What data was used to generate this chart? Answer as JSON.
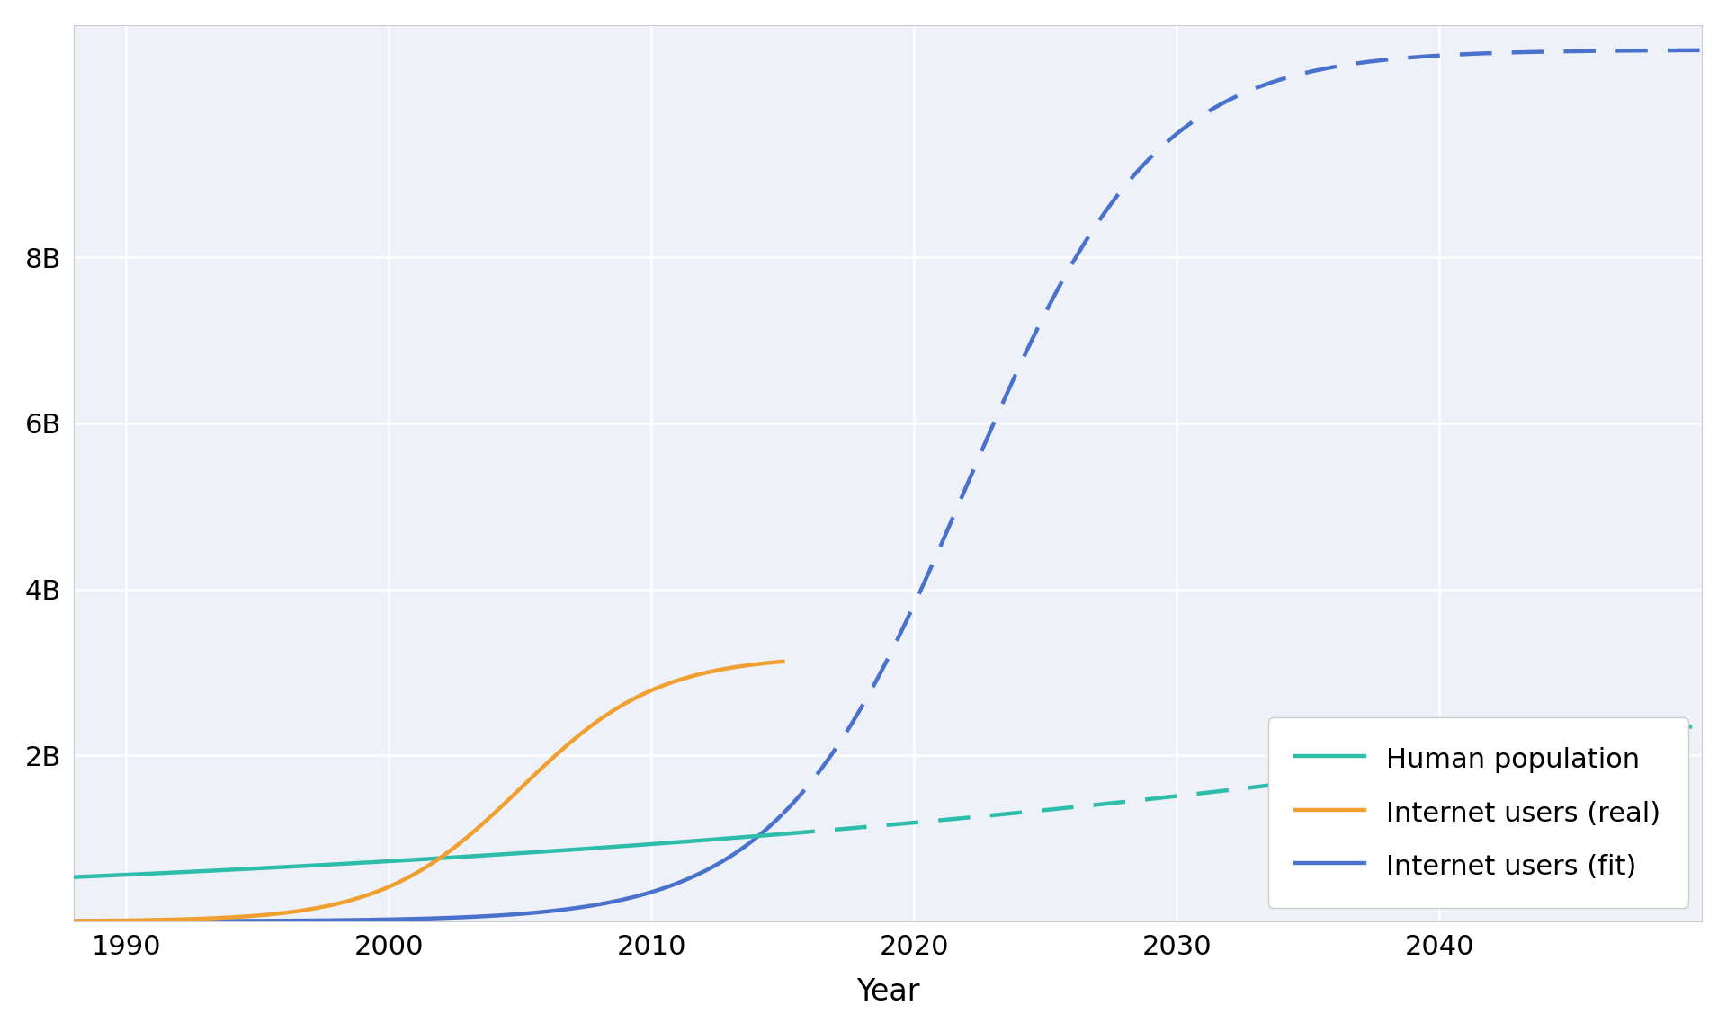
{
  "title": "",
  "xlabel": "Year",
  "ylabel": "",
  "background_color": "#ffffff",
  "plot_bg_color": "#eef2f8",
  "grid_color": "#ffffff",
  "x_min": 1988,
  "x_max": 2050,
  "y_min": 0,
  "y_max": 10800000000.0,
  "yticks": [
    2000000000.0,
    4000000000.0,
    6000000000.0,
    8000000000.0
  ],
  "ytick_labels": [
    "2B",
    "4B",
    "6B",
    "8B"
  ],
  "xticks": [
    1990,
    2000,
    2010,
    2020,
    2030,
    2040
  ],
  "pop_color": "#2dbdaa",
  "internet_real_color": "#f0a030",
  "internet_fit_color": "#4a72cc",
  "legend_labels": [
    "Human population",
    "Internet users (real)",
    "Internet users (fit)"
  ],
  "font_family": "DejaVu Sans",
  "pop_solid_end": 2015,
  "inet_solid_end": 2015,
  "pop_L": 11500000000.0,
  "pop_k": 0.027,
  "pop_y0": 2100,
  "inet_fit_L": 10500000000.0,
  "inet_fit_k": 0.28,
  "inet_fit_y0": 2022,
  "inet_real_L": 3200000000.0,
  "inet_real_k": 0.38,
  "inet_real_y0": 2005,
  "lw": 3.2
}
